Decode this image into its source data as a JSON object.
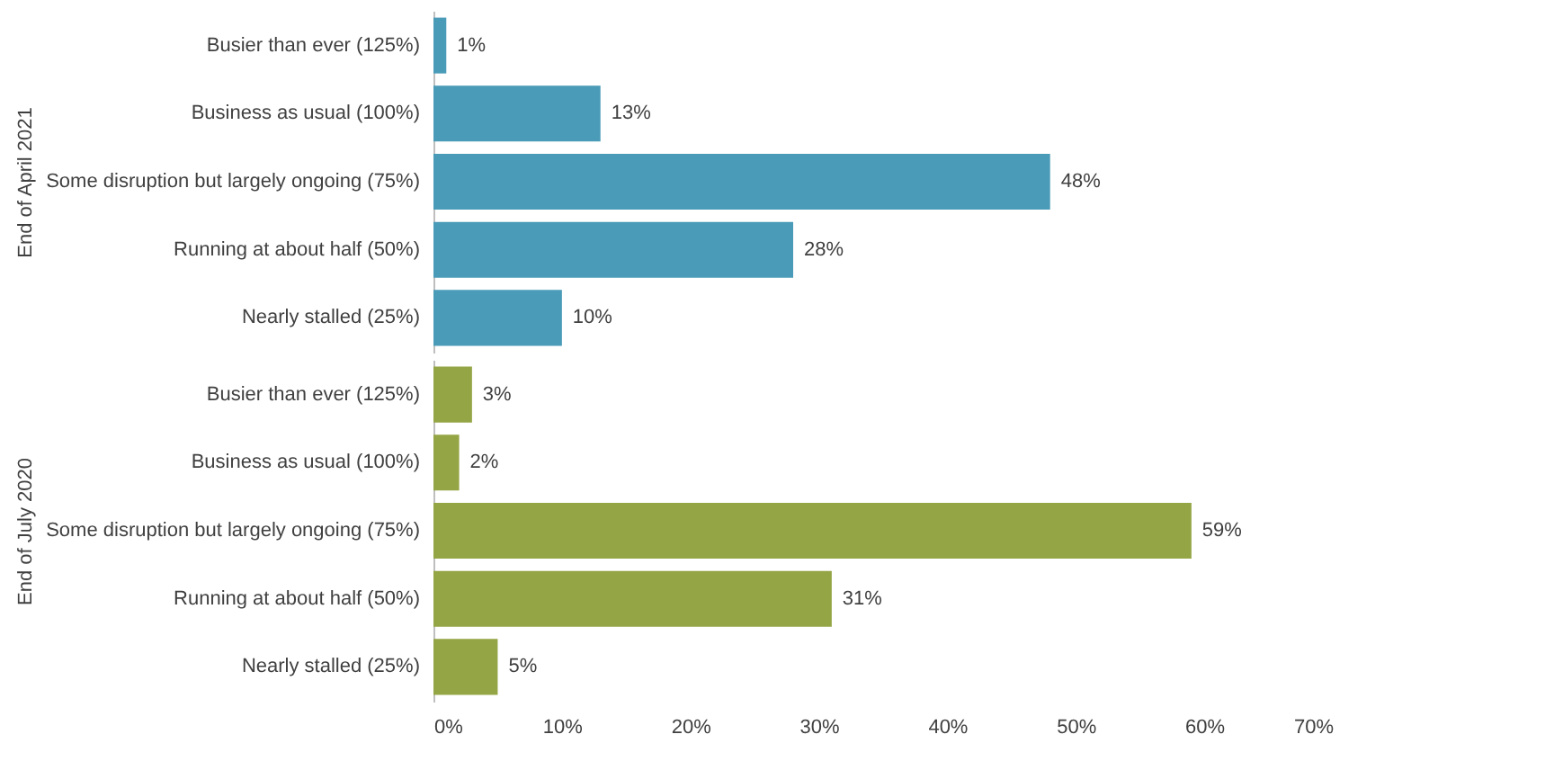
{
  "chart_data": [
    {
      "type": "bar",
      "orientation": "horizontal",
      "ylabel": "End of April 2021",
      "categories": [
        "Busier than ever (125%)",
        "Business as usual (100%)",
        "Some disruption but largely ongoing (75%)",
        "Running at about half (50%)",
        "Nearly stalled (25%)"
      ],
      "values": [
        1,
        13,
        48,
        28,
        10
      ],
      "value_labels": [
        "1%",
        "13%",
        "48%",
        "28%",
        "10%"
      ],
      "color": "#4a9bb8",
      "xlim": [
        0,
        70
      ],
      "tick_labels": "y"
    },
    {
      "type": "bar",
      "orientation": "horizontal",
      "ylabel": "End of July 2020",
      "categories": [
        "Busier than ever (125%)",
        "Business as usual (100%)",
        "Some disruption but largely ongoing (75%)",
        "Running at about half (50%)",
        "Nearly stalled (25%)"
      ],
      "values": [
        3,
        2,
        59,
        31,
        5
      ],
      "value_labels": [
        "3%",
        "2%",
        "59%",
        "31%",
        "5%"
      ],
      "color": "#94a545",
      "xlim": [
        0,
        70
      ],
      "xticks": [
        {
          "value": 0,
          "label": "0%"
        },
        {
          "value": 10,
          "label": "10%"
        },
        {
          "value": 20,
          "label": "20%"
        },
        {
          "value": 30,
          "label": "30%"
        },
        {
          "value": 40,
          "label": "40%"
        },
        {
          "value": 50,
          "label": "50%"
        },
        {
          "value": 60,
          "label": "60%"
        },
        {
          "value": 70,
          "label": "70%"
        }
      ]
    }
  ]
}
